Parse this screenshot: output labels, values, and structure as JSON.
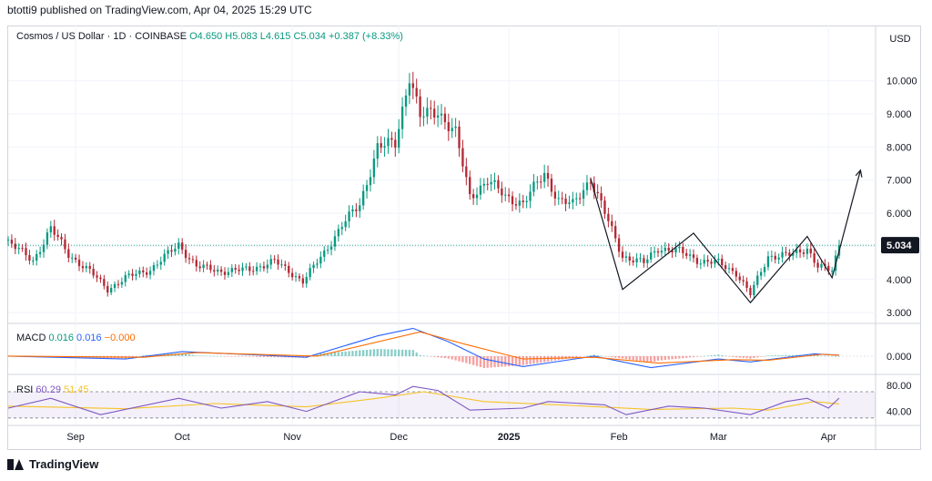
{
  "header": {
    "published": "btotti9 published on TradingView.com, Apr 04, 2025 15:29 UTC"
  },
  "legend": {
    "symbol": "Cosmos / US Dollar · 1D · COINBASE",
    "ohlc": "O4.650  H5.083  L4.615  C5.034  +0.387 (+8.33%)"
  },
  "currency": "USD",
  "last_price_label": "5.034",
  "macd_label": {
    "name": "MACD",
    "macd": "0.016",
    "signal": "0.016",
    "hist": "−0.000"
  },
  "rsi_label": {
    "name": "RSI",
    "rsi": "60.29",
    "ma": "51.45"
  },
  "brand": "TradingView",
  "colors": {
    "up": "#089981",
    "down": "#b22833",
    "macd": "#2962ff",
    "signal": "#ff6d00",
    "rsi": "#7e57c2",
    "rsi_ma": "#f7c325",
    "pattern": "#131722",
    "last_price_bg": "#131722"
  },
  "chart_data": [
    {
      "type": "candlestick",
      "title": "Cosmos / US Dollar · 1D · COINBASE",
      "ylim": [
        2.7,
        10.9
      ],
      "y_ticks": [
        "3.000",
        "4.000",
        "5.000",
        "6.000",
        "7.000",
        "8.000",
        "9.000",
        "10.000"
      ],
      "x_tick_labels": [
        "Sep",
        "Oct",
        "Nov",
        "Dec",
        "2025",
        "Feb",
        "Mar",
        "Apr"
      ],
      "x_range": [
        "2024-08-13",
        "2025-04-04"
      ],
      "last_price": 5.034,
      "series": [
        {
          "name": "ATOM/USD close (approx.)",
          "points": [
            [
              "2024-08-13",
              5.15
            ],
            [
              "2024-08-20",
              4.55
            ],
            [
              "2024-08-25",
              5.55
            ],
            [
              "2024-08-30",
              4.75
            ],
            [
              "2024-09-05",
              4.25
            ],
            [
              "2024-09-10",
              3.7
            ],
            [
              "2024-09-15",
              4.05
            ],
            [
              "2024-09-22",
              4.3
            ],
            [
              "2024-09-30",
              5.05
            ],
            [
              "2024-10-05",
              4.4
            ],
            [
              "2024-10-12",
              4.25
            ],
            [
              "2024-10-20",
              4.3
            ],
            [
              "2024-10-27",
              4.55
            ],
            [
              "2024-11-04",
              3.95
            ],
            [
              "2024-11-10",
              4.8
            ],
            [
              "2024-11-15",
              5.65
            ],
            [
              "2024-11-20",
              6.25
            ],
            [
              "2024-11-25",
              8.0
            ],
            [
              "2024-11-30",
              8.1
            ],
            [
              "2024-12-04",
              10.2
            ],
            [
              "2024-12-07",
              8.9
            ],
            [
              "2024-12-12",
              9.1
            ],
            [
              "2024-12-17",
              8.4
            ],
            [
              "2024-12-21",
              6.5
            ],
            [
              "2024-12-26",
              7.0
            ],
            [
              "2024-12-31",
              6.5
            ],
            [
              "2025-01-05",
              6.3
            ],
            [
              "2025-01-11",
              7.2
            ],
            [
              "2025-01-15",
              6.4
            ],
            [
              "2025-01-19",
              6.25
            ],
            [
              "2025-01-24",
              7.05
            ],
            [
              "2025-01-28",
              6.0
            ],
            [
              "2025-02-02",
              4.7
            ],
            [
              "2025-02-08",
              4.5
            ],
            [
              "2025-02-12",
              4.95
            ],
            [
              "2025-02-18",
              4.85
            ],
            [
              "2025-02-24",
              4.55
            ],
            [
              "2025-03-01",
              4.5
            ],
            [
              "2025-03-06",
              4.2
            ],
            [
              "2025-03-10",
              3.55
            ],
            [
              "2025-03-15",
              4.7
            ],
            [
              "2025-03-22",
              4.75
            ],
            [
              "2025-03-26",
              4.95
            ],
            [
              "2025-03-29",
              4.4
            ],
            [
              "2025-04-02",
              4.25
            ],
            [
              "2025-04-04",
              5.034
            ]
          ]
        }
      ],
      "annotations": {
        "pattern_line": [
          [
            "2025-01-24",
            7.05
          ],
          [
            "2025-02-02",
            3.7
          ],
          [
            "2025-02-22",
            5.4
          ],
          [
            "2025-03-10",
            3.3
          ],
          [
            "2025-03-26",
            5.3
          ],
          [
            "2025-04-02",
            4.05
          ],
          [
            "2025-04-10",
            7.3
          ]
        ]
      }
    },
    {
      "type": "line",
      "title": "MACD",
      "ylim": [
        -0.3,
        0.55
      ],
      "y_ticks": [
        "0.000"
      ],
      "series": [
        {
          "name": "MACD",
          "points": [
            [
              "2024-08-13",
              0.0
            ],
            [
              "2024-09-15",
              -0.05
            ],
            [
              "2024-10-01",
              0.08
            ],
            [
              "2024-11-05",
              -0.02
            ],
            [
              "2024-11-25",
              0.35
            ],
            [
              "2024-12-05",
              0.48
            ],
            [
              "2024-12-15",
              0.25
            ],
            [
              "2024-12-25",
              -0.05
            ],
            [
              "2025-01-05",
              -0.18
            ],
            [
              "2025-01-25",
              0.0
            ],
            [
              "2025-02-10",
              -0.2
            ],
            [
              "2025-03-01",
              -0.05
            ],
            [
              "2025-03-10",
              -0.1
            ],
            [
              "2025-03-28",
              0.04
            ],
            [
              "2025-04-04",
              0.016
            ]
          ]
        },
        {
          "name": "Signal",
          "points": [
            [
              "2024-08-13",
              0.0
            ],
            [
              "2024-09-20",
              -0.02
            ],
            [
              "2024-10-05",
              0.06
            ],
            [
              "2024-11-08",
              0.0
            ],
            [
              "2024-12-07",
              0.42
            ],
            [
              "2024-12-20",
              0.2
            ],
            [
              "2025-01-05",
              -0.05
            ],
            [
              "2025-01-25",
              -0.02
            ],
            [
              "2025-02-12",
              -0.12
            ],
            [
              "2025-03-05",
              -0.06
            ],
            [
              "2025-03-15",
              -0.07
            ],
            [
              "2025-03-30",
              0.03
            ],
            [
              "2025-04-04",
              0.016
            ]
          ]
        }
      ]
    },
    {
      "type": "line",
      "title": "RSI",
      "ylim": [
        20,
        95
      ],
      "y_ticks": [
        "40.00",
        "80.00"
      ],
      "bands": [
        30,
        70
      ],
      "series": [
        {
          "name": "RSI",
          "points": [
            [
              "2024-08-13",
              45
            ],
            [
              "2024-08-25",
              60
            ],
            [
              "2024-09-08",
              35
            ],
            [
              "2024-09-30",
              60
            ],
            [
              "2024-10-12",
              45
            ],
            [
              "2024-10-25",
              55
            ],
            [
              "2024-11-05",
              40
            ],
            [
              "2024-11-20",
              70
            ],
            [
              "2024-11-30",
              65
            ],
            [
              "2024-12-05",
              78
            ],
            [
              "2024-12-12",
              72
            ],
            [
              "2024-12-21",
              42
            ],
            [
              "2025-01-05",
              45
            ],
            [
              "2025-01-12",
              55
            ],
            [
              "2025-01-28",
              50
            ],
            [
              "2025-02-03",
              35
            ],
            [
              "2025-02-15",
              48
            ],
            [
              "2025-02-25",
              45
            ],
            [
              "2025-03-10",
              35
            ],
            [
              "2025-03-20",
              55
            ],
            [
              "2025-03-26",
              60
            ],
            [
              "2025-04-01",
              45
            ],
            [
              "2025-04-04",
              60.29
            ]
          ]
        },
        {
          "name": "RSI MA",
          "points": [
            [
              "2024-08-13",
              48
            ],
            [
              "2024-09-15",
              44
            ],
            [
              "2024-10-10",
              52
            ],
            [
              "2024-11-05",
              47
            ],
            [
              "2024-11-25",
              60
            ],
            [
              "2024-12-08",
              70
            ],
            [
              "2024-12-25",
              55
            ],
            [
              "2025-01-15",
              50
            ],
            [
              "2025-02-10",
              43
            ],
            [
              "2025-03-05",
              45
            ],
            [
              "2025-03-15",
              42
            ],
            [
              "2025-03-28",
              55
            ],
            [
              "2025-04-04",
              51.45
            ]
          ]
        }
      ]
    }
  ]
}
